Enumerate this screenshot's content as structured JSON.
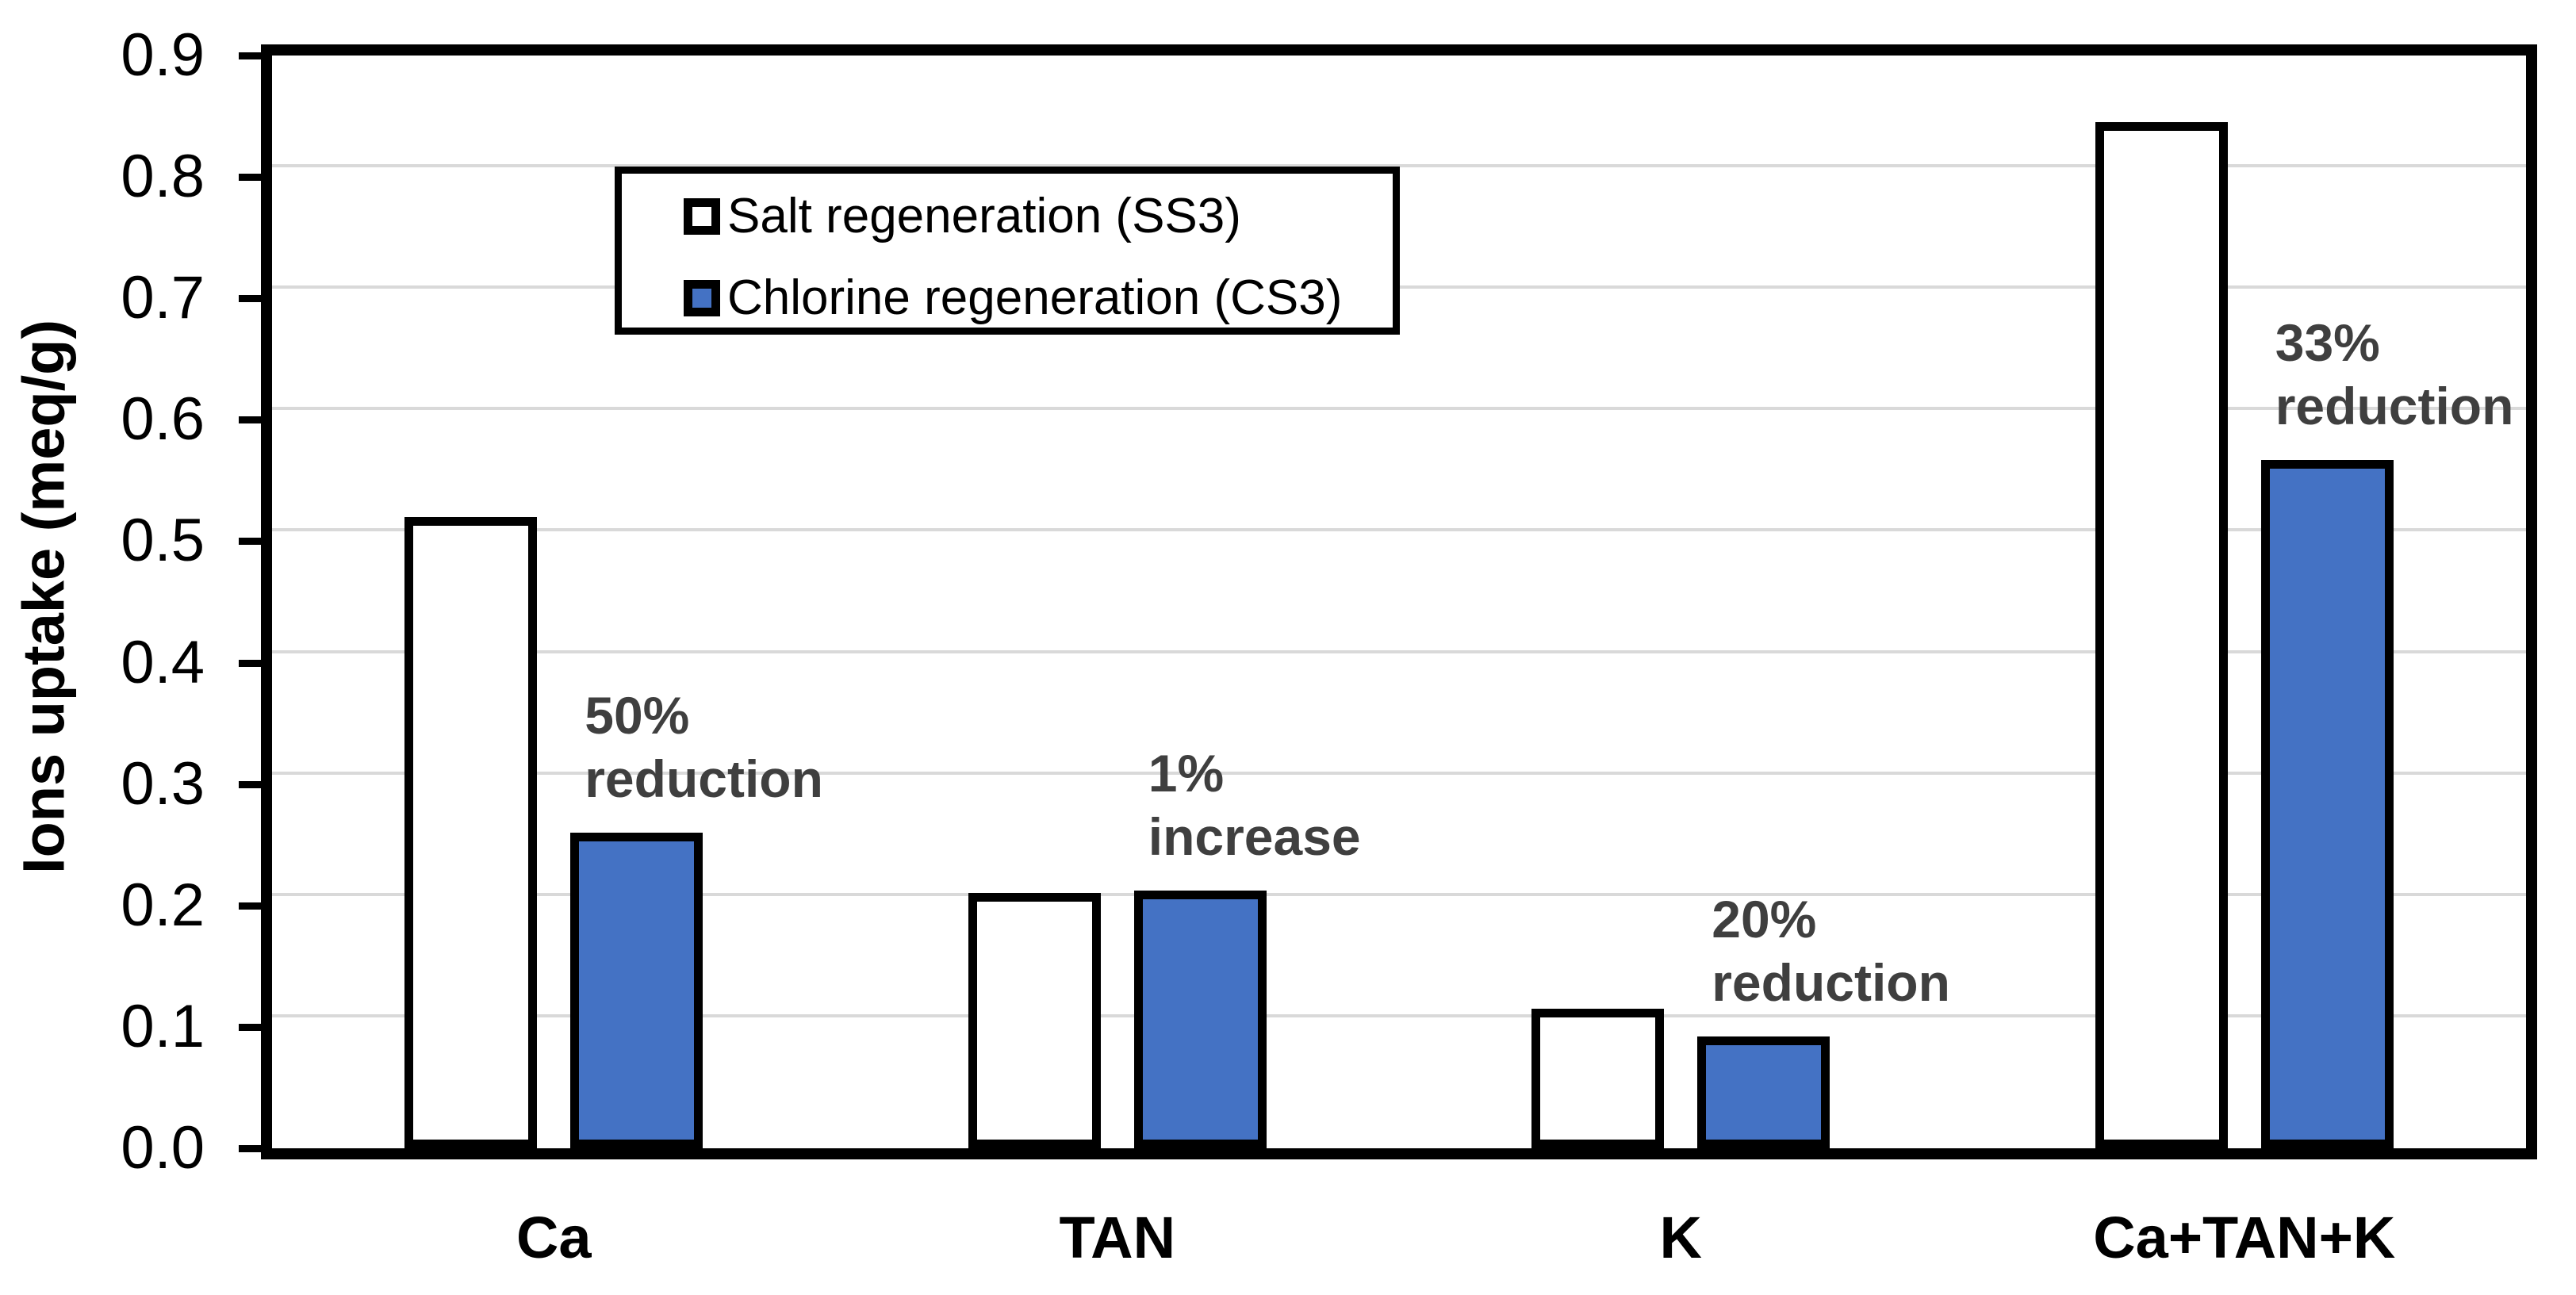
{
  "chart_data": {
    "type": "bar",
    "title": "",
    "categories": [
      "Ca",
      "TAN",
      "K",
      "Ca+TAN+K"
    ],
    "series": [
      {
        "name": "Salt regeneration (SS3)",
        "fill": "#FFFFFF",
        "values": [
          0.52,
          0.21,
          0.115,
          0.845
        ]
      },
      {
        "name": "Chlorine regeneration (CS3)",
        "fill": "#4472C4",
        "values": [
          0.26,
          0.212,
          0.092,
          0.567
        ]
      }
    ],
    "ylabel": "Ions uptake (meq/g)",
    "xlabel": "",
    "ylim": [
      0,
      0.9
    ],
    "ytick_step": 0.1,
    "minor_tick_step": 0.02,
    "ytick_labels": [
      "0.0",
      "0.1",
      "0.2",
      "0.3",
      "0.4",
      "0.5",
      "0.6",
      "0.7",
      "0.8",
      "0.9"
    ],
    "grid": true,
    "legend_position": "inside-top-left",
    "annotations": [
      {
        "group": "Ca",
        "lines": [
          "50%",
          "reduction"
        ]
      },
      {
        "group": "TAN",
        "lines": [
          "1%",
          "increase"
        ]
      },
      {
        "group": "K",
        "lines": [
          "20%",
          "reduction"
        ]
      },
      {
        "group": "Ca+TAN+K",
        "lines": [
          "33%",
          "reduction"
        ]
      }
    ],
    "colors": {
      "bar_border": "#000000",
      "gridline": "#D9D9D9",
      "annotation_text": "#3F3F3F",
      "axis": "#000000",
      "background": "#FFFFFF",
      "series_blue": "#4472C4"
    }
  }
}
